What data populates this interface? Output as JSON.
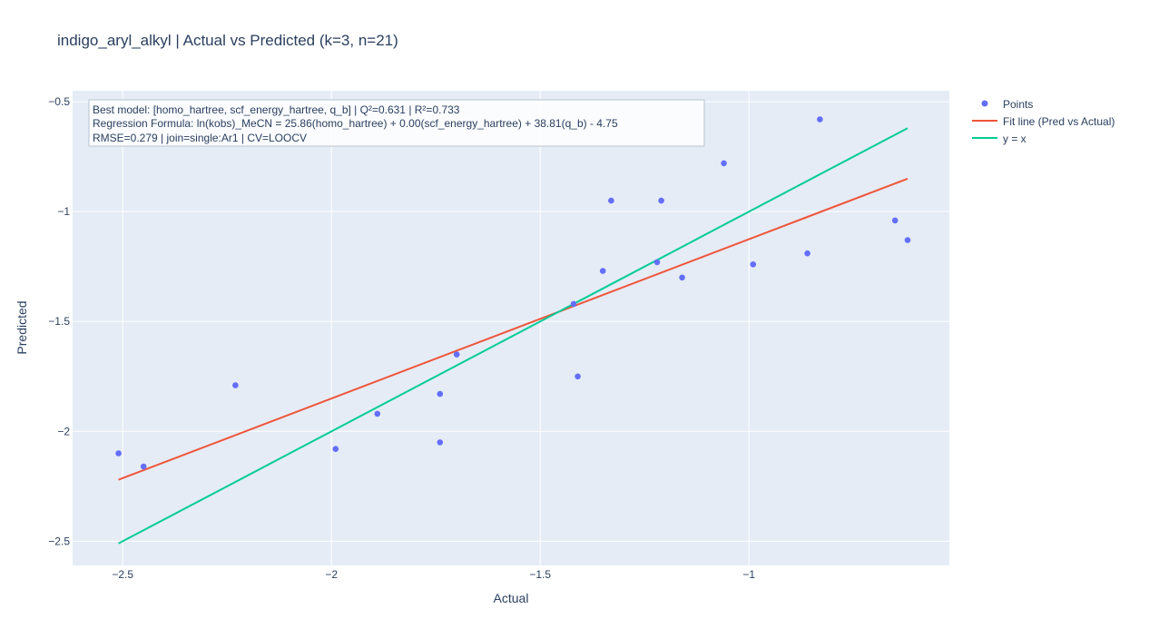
{
  "chart_data": {
    "type": "scatter",
    "title": "indigo_aryl_alkyl | Actual vs Predicted (k=3, n=21)",
    "xlabel": "Actual",
    "ylabel": "Predicted",
    "xlim": [
      -2.62,
      -0.52
    ],
    "ylim": [
      -2.61,
      -0.45
    ],
    "x_ticks": [
      -2.5,
      -2,
      -1.5,
      -1
    ],
    "x_tick_labels": [
      "−2.5",
      "−2",
      "−1.5",
      "−1"
    ],
    "y_ticks": [
      -2.5,
      -2,
      -1.5,
      -1,
      -0.5
    ],
    "y_tick_labels": [
      "−2.5",
      "−2",
      "−1.5",
      "−1",
      "−0.5"
    ],
    "grid": true,
    "legend_position": "top-right outside",
    "annotation": [
      "Best model: [homo_hartree, scf_energy_hartree, q_b] | Q²=0.631 | R²=0.733",
      "Regression Formula: ln(kobs)_MeCN = 25.86(homo_hartree) + 0.00(scf_energy_hartree) + 38.81(q_b) - 4.75",
      "RMSE=0.279 | join=single:Ar1 | CV=LOOCV"
    ],
    "series": [
      {
        "name": "Points",
        "mode": "markers",
        "color": "#636efa",
        "points": [
          [
            -2.51,
            -2.1
          ],
          [
            -2.45,
            -2.16
          ],
          [
            -2.23,
            -1.79
          ],
          [
            -1.99,
            -2.08
          ],
          [
            -1.89,
            -1.92
          ],
          [
            -1.74,
            -1.83
          ],
          [
            -1.74,
            -2.05
          ],
          [
            -1.7,
            -1.65
          ],
          [
            -1.42,
            -1.42
          ],
          [
            -1.41,
            -1.75
          ],
          [
            -1.35,
            -1.27
          ],
          [
            -1.33,
            -0.95
          ],
          [
            -1.22,
            -1.23
          ],
          [
            -1.21,
            -0.95
          ],
          [
            -1.16,
            -1.3
          ],
          [
            -1.06,
            -0.78
          ],
          [
            -0.99,
            -1.24
          ],
          [
            -0.86,
            -1.19
          ],
          [
            -0.83,
            -0.58
          ],
          [
            -0.65,
            -1.04
          ],
          [
            -0.62,
            -1.13
          ]
        ]
      },
      {
        "name": "Fit line (Pred vs Actual)",
        "mode": "lines",
        "color": "#ef553b",
        "points": [
          [
            -2.51,
            -2.22
          ],
          [
            -0.62,
            -0.85
          ]
        ]
      },
      {
        "name": "y = x",
        "mode": "lines",
        "color": "#00cc96",
        "points": [
          [
            -2.51,
            -2.51
          ],
          [
            -0.62,
            -0.62
          ]
        ]
      }
    ]
  }
}
